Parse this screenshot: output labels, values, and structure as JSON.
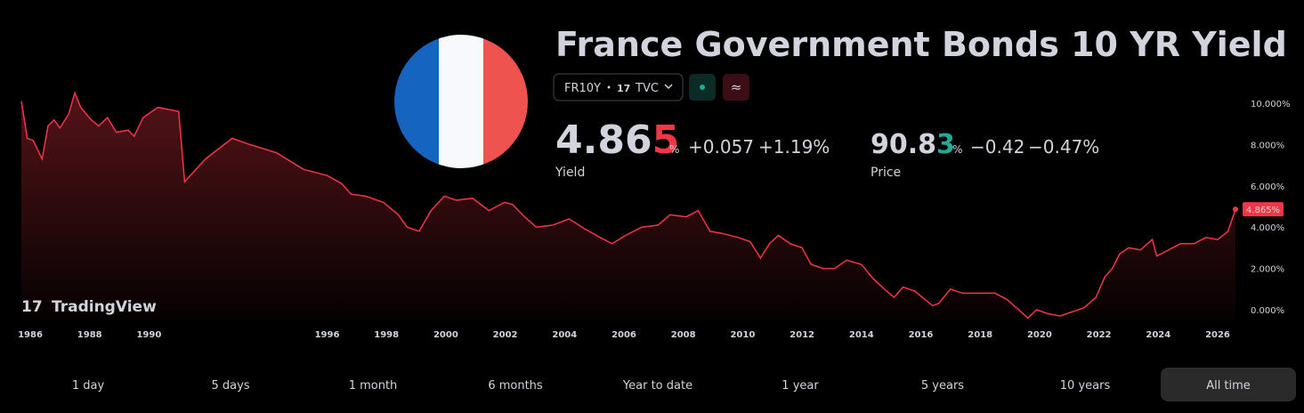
{
  "header": {
    "title": "France Government Bonds 10 YR Yield",
    "symbol": "FR10Y",
    "source": "TVC"
  },
  "quote": {
    "yield": "4.865",
    "yield_unit": "%",
    "yield_change": "+0.057",
    "yield_change_pct": "+1.19%",
    "yield_label": "Yield",
    "price": "90.83",
    "price_unit": "%",
    "price_change": "−0.42",
    "price_change_pct": "−0.47%",
    "price_label": "Price"
  },
  "logo": "TradingView",
  "chart_data": {
    "type": "area",
    "color": "#f23645",
    "x": [
      1985.7,
      1985.9,
      1986.1,
      1986.4,
      1986.6,
      1986.8,
      1987.0,
      1987.3,
      1987.5,
      1987.7,
      1988.05,
      1988.3,
      1988.6,
      1988.9,
      1989.3,
      1989.5,
      1989.8,
      1990.3,
      1991.0,
      1991.2,
      1991.9,
      1992.8,
      1993.4,
      1994.3,
      1995.2,
      1996.0,
      1996.5,
      1996.8,
      1997.3,
      1997.9,
      1998.4,
      1998.7,
      1999.1,
      1999.5,
      1999.95,
      2000.35,
      2000.9,
      2001.45,
      2001.97,
      2002.25,
      2002.65,
      2003.05,
      2003.6,
      2004.15,
      2004.7,
      2005.2,
      2005.6,
      2006.05,
      2006.6,
      2007.15,
      2007.55,
      2008.1,
      2008.5,
      2008.9,
      2009.3,
      2009.85,
      2010.25,
      2010.6,
      2010.9,
      2011.2,
      2011.6,
      2012.0,
      2012.3,
      2012.7,
      2013.1,
      2013.5,
      2014.0,
      2014.4,
      2014.85,
      2015.1,
      2015.4,
      2015.8,
      2016.05,
      2016.4,
      2016.6,
      2017.0,
      2017.4,
      2018.0,
      2018.5,
      2018.9,
      2019.3,
      2019.6,
      2019.9,
      2020.3,
      2020.7,
      2021.1,
      2021.5,
      2021.9,
      2022.2,
      2022.45,
      2022.7,
      2023.0,
      2023.4,
      2023.8,
      2023.95,
      2024.35,
      2024.75,
      2025.2,
      2025.6,
      2026.0,
      2026.35,
      2026.6
    ],
    "values": [
      10.1,
      8.3,
      8.2,
      7.3,
      8.9,
      9.2,
      8.8,
      9.5,
      10.5,
      9.8,
      9.2,
      8.9,
      9.3,
      8.6,
      8.7,
      8.4,
      9.3,
      9.8,
      9.6,
      6.2,
      7.3,
      8.3,
      8.0,
      7.6,
      6.8,
      6.5,
      6.1,
      5.6,
      5.5,
      5.2,
      4.6,
      4.0,
      3.8,
      4.8,
      5.5,
      5.3,
      5.4,
      4.8,
      5.2,
      5.1,
      4.5,
      4.0,
      4.1,
      4.4,
      3.9,
      3.5,
      3.2,
      3.6,
      4.0,
      4.1,
      4.6,
      4.5,
      4.8,
      3.8,
      3.7,
      3.5,
      3.3,
      2.5,
      3.2,
      3.6,
      3.2,
      3.0,
      2.2,
      2.0,
      2.0,
      2.4,
      2.2,
      1.5,
      0.9,
      0.6,
      1.1,
      0.9,
      0.6,
      0.2,
      0.3,
      1.0,
      0.8,
      0.8,
      0.8,
      0.5,
      0.0,
      -0.4,
      0.0,
      -0.2,
      -0.3,
      -0.1,
      0.1,
      0.6,
      1.6,
      2.0,
      2.7,
      3.0,
      2.9,
      3.4,
      2.6,
      2.9,
      3.2,
      3.2,
      3.5,
      3.4,
      3.8,
      4.865
    ],
    "last_value_label": "4.865%",
    "xlim": [
      1985.7,
      2026.6
    ],
    "xticks": [
      1986,
      1988,
      1990,
      1996,
      1998,
      2000,
      2002,
      2004,
      2006,
      2008,
      2010,
      2012,
      2014,
      2016,
      2018,
      2020,
      2022,
      2024,
      2026
    ],
    "ylim": [
      -1,
      11
    ],
    "yticks": [
      {
        "value": 0,
        "label": "0.000%"
      },
      {
        "value": 2,
        "label": "2.000%"
      },
      {
        "value": 4,
        "label": "4.000%"
      },
      {
        "value": 6,
        "label": "6.000%"
      },
      {
        "value": 8,
        "label": "8.000%"
      },
      {
        "value": 10,
        "label": "10.000%"
      }
    ]
  },
  "range_buttons": [
    "1 day",
    "5 days",
    "1 month",
    "6 months",
    "Year to date",
    "1 year",
    "5 years",
    "10 years",
    "All time"
  ],
  "active_range": 8
}
